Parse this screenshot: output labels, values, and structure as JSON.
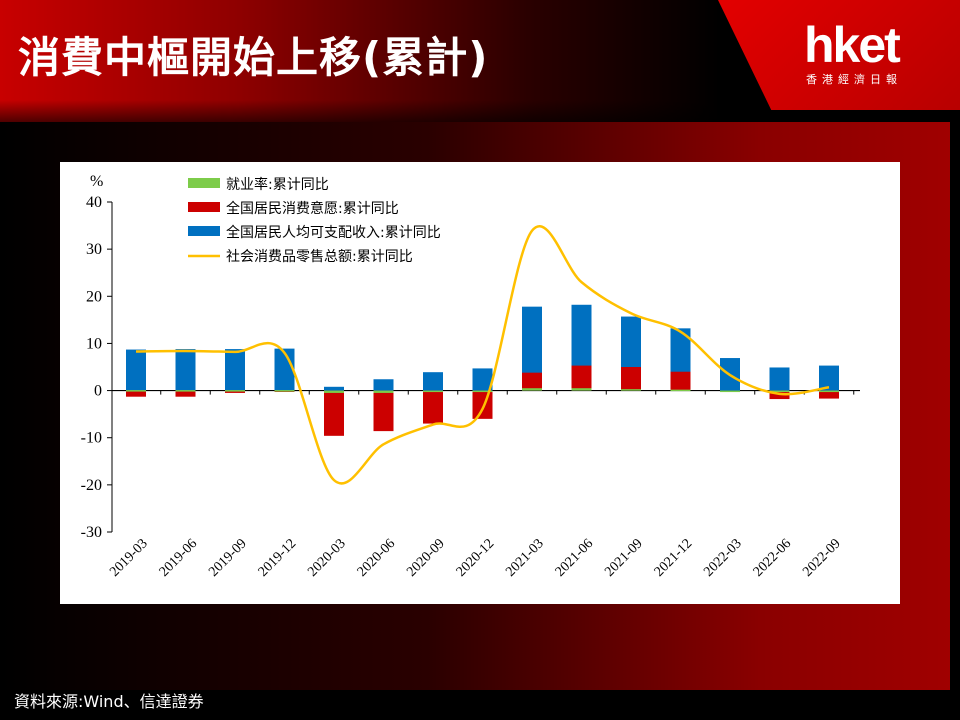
{
  "header": {
    "title": "消費中樞開始上移(累計)",
    "logo": "hket",
    "logo_sub": "香港經濟日報"
  },
  "footer": {
    "source": "資料來源:Wind、信達證券"
  },
  "colors": {
    "employment": "#7dcc4a",
    "willingness": "#cc0000",
    "income": "#0070c0",
    "retail": "#ffc000"
  },
  "chart_data": {
    "type": "bar",
    "ylabel": "%",
    "ylim": [
      -30,
      40
    ],
    "yticks": [
      40,
      30,
      20,
      10,
      0,
      -10,
      -20,
      -30
    ],
    "categories": [
      "2019-03",
      "2019-06",
      "2019-09",
      "2019-12",
      "2020-03",
      "2020-06",
      "2020-09",
      "2020-12",
      "2021-03",
      "2021-06",
      "2021-09",
      "2021-12",
      "2022-03",
      "2022-06",
      "2022-09"
    ],
    "series": [
      {
        "name": "就业率:累计同比",
        "type": "bar",
        "values": [
          0.1,
          0.1,
          0.1,
          0.1,
          -0.5,
          -0.5,
          -0.3,
          -0.2,
          0.5,
          0.5,
          0.3,
          0.2,
          -0.3,
          -0.2,
          -0.1
        ]
      },
      {
        "name": "全国居民消费意愿:累计同比",
        "type": "bar",
        "values": [
          -1.3,
          -1.3,
          -0.5,
          -0.3,
          -9.6,
          -8.6,
          -7.0,
          -6.0,
          3.8,
          5.3,
          5.0,
          4.0,
          0.0,
          -1.8,
          -1.7
        ]
      },
      {
        "name": "全国居民人均可支配收入:累计同比",
        "type": "bar",
        "values": [
          8.7,
          8.8,
          8.8,
          8.9,
          0.8,
          2.4,
          3.9,
          4.7,
          17.8,
          18.2,
          15.7,
          13.2,
          6.9,
          4.9,
          5.3
        ]
      },
      {
        "name": "社会消费品零售总额:累计同比",
        "type": "line",
        "values": [
          8.3,
          8.4,
          8.2,
          8.0,
          -19.0,
          -11.4,
          -7.2,
          -3.9,
          33.9,
          23.0,
          16.4,
          12.5,
          3.3,
          -0.7,
          0.7
        ]
      }
    ],
    "legend_position": "top-left"
  }
}
